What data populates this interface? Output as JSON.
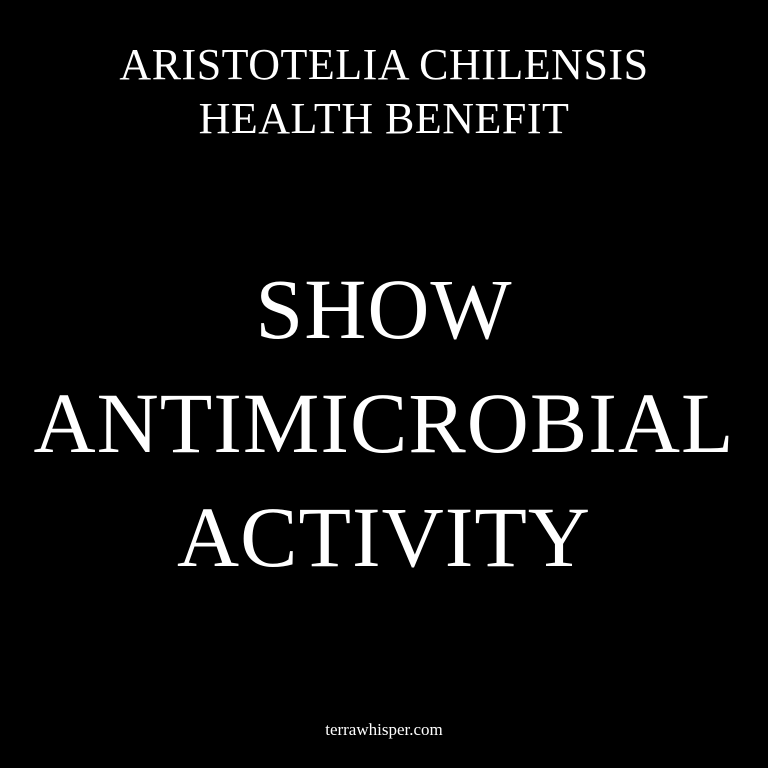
{
  "header": {
    "line1": "ARISTOTELIA CHILENSIS",
    "line2": "HEALTH BENEFIT"
  },
  "headline": {
    "line1": "SHOW",
    "line2": "ANTIMICROBIAL",
    "line3": "ACTIVITY"
  },
  "footer": {
    "site": "terrawhisper.com"
  },
  "colors": {
    "background": "#000000",
    "text": "#ffffff"
  }
}
